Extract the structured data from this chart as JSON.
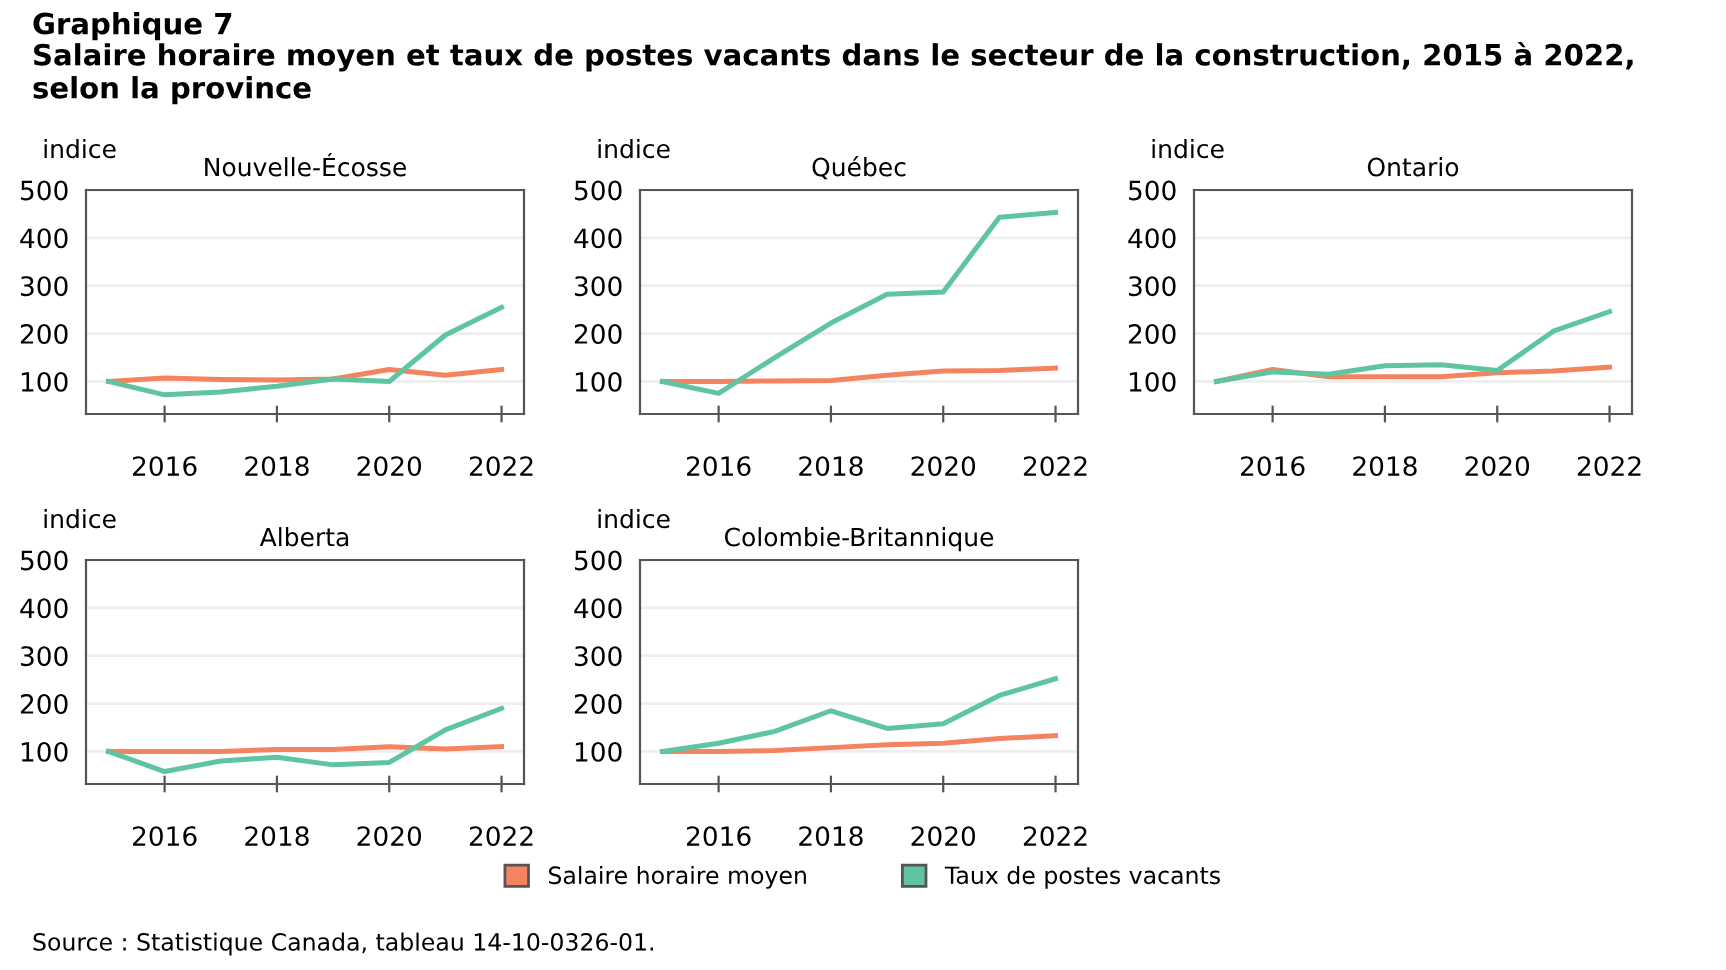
{
  "chart_data": [
    {
      "type": "line",
      "title": "Nouvelle-Écosse",
      "ylabel": "indice",
      "annotations": [
        "Graphique 7",
        "Salaire horaire moyen et taux de postes vacants dans le secteur de la construction, 2015 à 2022,\nselon la province"
      ],
      "x": [
        2015,
        2016,
        2017,
        2018,
        2019,
        2020,
        2021,
        2022
      ],
      "xlim": [
        2014.6,
        2022.4
      ],
      "xticks": [
        2016,
        2018,
        2020,
        2022
      ],
      "ylim": [
        32,
        500
      ],
      "yticks": [
        100,
        200,
        300,
        400,
        500
      ],
      "grid": "y",
      "legend": "bottom",
      "series": [
        {
          "name": "Salaire horaire moyen",
          "color": "#f4845f",
          "values": [
            100,
            107,
            104,
            103,
            105,
            125,
            113,
            125
          ]
        },
        {
          "name": "Taux de postes vacants",
          "color": "#5fc4a0",
          "values": [
            100,
            72,
            78,
            90,
            105,
            100,
            197,
            255
          ]
        }
      ]
    },
    {
      "type": "line",
      "title": "Québec",
      "ylabel": "indice",
      "x": [
        2015,
        2016,
        2017,
        2018,
        2019,
        2020,
        2021,
        2022
      ],
      "xlim": [
        2014.6,
        2022.4
      ],
      "xticks": [
        2016,
        2018,
        2020,
        2022
      ],
      "ylim": [
        32,
        500
      ],
      "yticks": [
        100,
        200,
        300,
        400,
        500
      ],
      "grid": "y",
      "series": [
        {
          "color": "#f4845f",
          "values": [
            100,
            100,
            101,
            102,
            113,
            122,
            123,
            128
          ]
        },
        {
          "color": "#5fc4a0",
          "values": [
            100,
            75,
            150,
            222,
            282,
            287,
            443,
            453
          ]
        }
      ]
    },
    {
      "type": "line",
      "title": "Ontario",
      "ylabel": "indice",
      "x": [
        2015,
        2016,
        2017,
        2018,
        2019,
        2020,
        2021,
        2022
      ],
      "xlim": [
        2014.6,
        2022.4
      ],
      "xticks": [
        2016,
        2018,
        2020,
        2022
      ],
      "ylim": [
        32,
        500
      ],
      "yticks": [
        100,
        200,
        300,
        400,
        500
      ],
      "grid": "y",
      "series": [
        {
          "color": "#f4845f",
          "values": [
            100,
            125,
            110,
            110,
            110,
            118,
            122,
            130
          ]
        },
        {
          "color": "#5fc4a0",
          "values": [
            100,
            120,
            115,
            133,
            135,
            123,
            205,
            246
          ]
        }
      ]
    },
    {
      "type": "line",
      "title": "Alberta",
      "ylabel": "indice",
      "x": [
        2015,
        2016,
        2017,
        2018,
        2019,
        2020,
        2021,
        2022
      ],
      "xlim": [
        2014.6,
        2022.4
      ],
      "xticks": [
        2016,
        2018,
        2020,
        2022
      ],
      "ylim": [
        32,
        500
      ],
      "yticks": [
        100,
        200,
        300,
        400,
        500
      ],
      "grid": "y",
      "series": [
        {
          "color": "#f4845f",
          "values": [
            100,
            100,
            100,
            104,
            104,
            110,
            105,
            110
          ]
        },
        {
          "color": "#5fc4a0",
          "values": [
            100,
            58,
            80,
            88,
            72,
            77,
            145,
            190
          ]
        }
      ]
    },
    {
      "type": "line",
      "title": "Colombie-Britannique",
      "ylabel": "indice",
      "annotations": [
        "Source : Statistique Canada, tableau 14-10-0326-01."
      ],
      "x": [
        2015,
        2016,
        2017,
        2018,
        2019,
        2020,
        2021,
        2022
      ],
      "xlim": [
        2014.6,
        2022.4
      ],
      "xticks": [
        2016,
        2018,
        2020,
        2022
      ],
      "ylim": [
        32,
        500
      ],
      "yticks": [
        100,
        200,
        300,
        400,
        500
      ],
      "grid": "y",
      "series": [
        {
          "color": "#f4845f",
          "values": [
            100,
            100,
            102,
            108,
            114,
            117,
            127,
            133
          ]
        },
        {
          "color": "#5fc4a0",
          "values": [
            100,
            117,
            142,
            185,
            148,
            158,
            217,
            252
          ]
        }
      ]
    }
  ]
}
